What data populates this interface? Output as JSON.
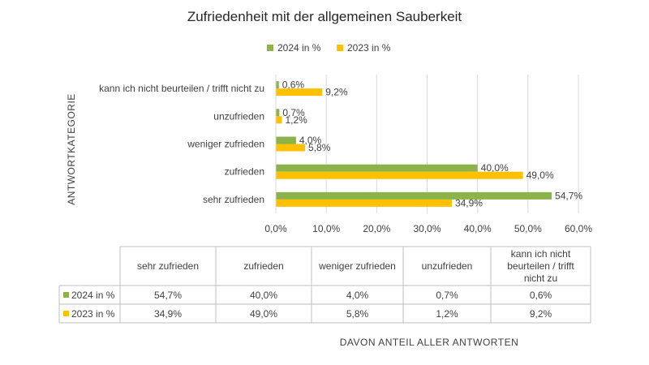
{
  "chart_data": {
    "type": "bar",
    "orientation": "horizontal",
    "title": "Zufriedenheit mit der allgemeinen Sauberkeit",
    "ylabel": "ANTWORTKATEGORIE",
    "xlabel": "DAVON ANTEIL ALLER ANTWORTEN",
    "categories": [
      "sehr zufrieden",
      "zufrieden",
      "weniger zufrieden",
      "unzufrieden",
      "kann ich nicht beurteilen / trifft nicht zu"
    ],
    "table_headers": [
      "sehr zufrieden",
      "zufrieden",
      "weniger zufrieden",
      "unzufrieden",
      "kann ich nicht beurteilen / trifft nicht zu"
    ],
    "series": [
      {
        "name": "2024 in %",
        "color": "#8cb34a",
        "values": [
          54.7,
          40.0,
          4.0,
          0.7,
          0.6
        ],
        "labels": [
          "54,7%",
          "40,0%",
          "4,0%",
          "0,7%",
          "0,6%"
        ]
      },
      {
        "name": "2023 in %",
        "color": "#ffc000",
        "values": [
          34.9,
          49.0,
          5.8,
          1.2,
          9.2
        ],
        "labels": [
          "34,9%",
          "49,0%",
          "5,8%",
          "1,2%",
          "9,2%"
        ]
      }
    ],
    "xlim": [
      0,
      60
    ],
    "ticks": [
      0,
      10,
      20,
      30,
      40,
      50,
      60
    ],
    "tick_labels": [
      "0,0%",
      "10,0%",
      "20,0%",
      "30,0%",
      "40,0%",
      "50,0%",
      "60,0%"
    ],
    "grid": true,
    "legend": "top"
  }
}
